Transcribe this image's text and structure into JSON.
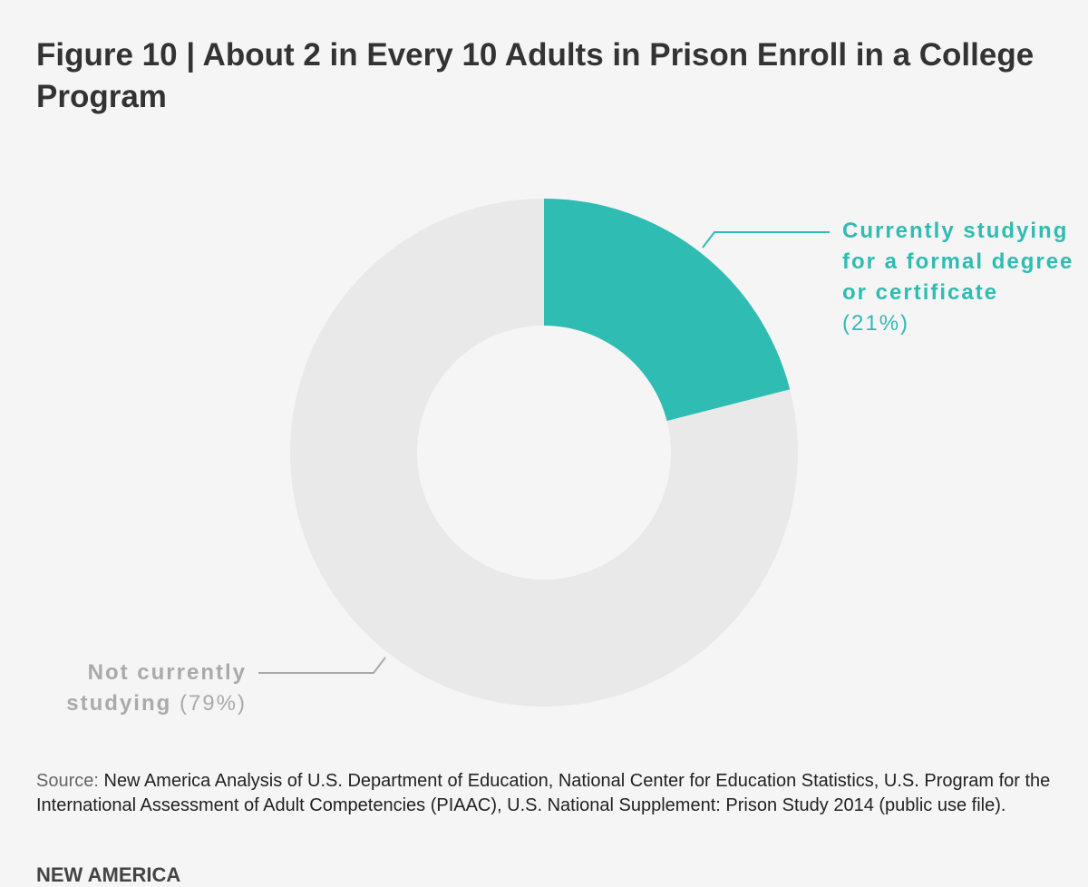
{
  "title": "Figure 10 | About 2 in Every 10 Adults in Prison Enroll in a College Program",
  "chart_data": {
    "type": "pie",
    "variant": "donut",
    "title": "Figure 10 | About 2 in Every 10 Adults in Prison Enroll in a College Program",
    "slices": [
      {
        "label": "Currently studying for a formal degree or certificate",
        "pct_label": "(21%)",
        "value": 21,
        "color": "#2fbcb2"
      },
      {
        "label": "Not currently studying",
        "pct_label": "(79%)",
        "value": 79,
        "color": "#e9e9e9"
      }
    ],
    "colors": {
      "label_teal": "#2fbcb2",
      "label_grey": "#aaaaaa"
    }
  },
  "source": {
    "label": "Source:",
    "text": " New America Analysis of U.S. Department of Education, National Center for Education Statistics, U.S. Program for the International Assessment of Adult Competencies (PIAAC), U.S. National Supplement: Prison Study 2014 (public use file)."
  },
  "brand": "NEW AMERICA"
}
